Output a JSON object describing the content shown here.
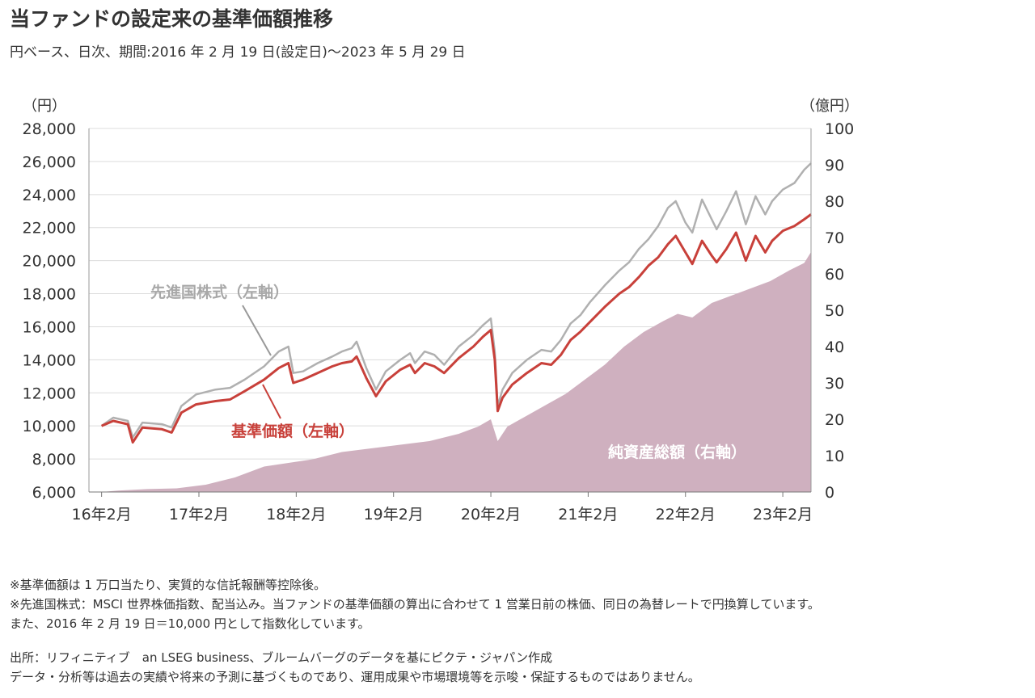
{
  "title": "当ファンドの設定来の基準価額推移",
  "subtitle": "円ベース、日次、期間:2016 年 2 月 19 日(設定日)～2023 年 5 月 29 日",
  "colors": {
    "nav": "#c8403a",
    "index": "#b0b0b0",
    "assets": "#cfb0bf",
    "grid": "#dcdcdc"
  },
  "chart_data": {
    "type": "line",
    "left_axis": {
      "unit": "（円）",
      "min": 6000,
      "max": 28000,
      "step": 2000,
      "ticks": [
        "6,000",
        "8,000",
        "10,000",
        "12,000",
        "14,000",
        "16,000",
        "18,000",
        "20,000",
        "22,000",
        "24,000",
        "26,000",
        "28,000"
      ]
    },
    "right_axis": {
      "unit": "（億円）",
      "min": 0,
      "max": 100,
      "step": 10,
      "ticks": [
        "0",
        "10",
        "20",
        "30",
        "40",
        "50",
        "60",
        "70",
        "80",
        "90",
        "100"
      ]
    },
    "x_axis": {
      "min": 2016.0,
      "max": 2023.42,
      "ticks": [
        {
          "label": "16年2月",
          "x": 2016.13
        },
        {
          "label": "17年2月",
          "x": 2017.13
        },
        {
          "label": "18年2月",
          "x": 2018.13
        },
        {
          "label": "19年2月",
          "x": 2019.13
        },
        {
          "label": "20年2月",
          "x": 2020.13
        },
        {
          "label": "21年2月",
          "x": 2021.13
        },
        {
          "label": "22年2月",
          "x": 2022.13
        },
        {
          "label": "23年2月",
          "x": 2023.13
        }
      ]
    },
    "series": [
      {
        "name": "先進国株式（左軸）",
        "axis": "left",
        "kind": "line",
        "points": [
          [
            2016.13,
            10000
          ],
          [
            2016.25,
            10500
          ],
          [
            2016.4,
            10300
          ],
          [
            2016.45,
            9300
          ],
          [
            2016.55,
            10200
          ],
          [
            2016.75,
            10100
          ],
          [
            2016.85,
            9900
          ],
          [
            2016.95,
            11200
          ],
          [
            2017.1,
            11900
          ],
          [
            2017.3,
            12200
          ],
          [
            2017.45,
            12300
          ],
          [
            2017.6,
            12800
          ],
          [
            2017.8,
            13600
          ],
          [
            2017.95,
            14500
          ],
          [
            2018.05,
            14800
          ],
          [
            2018.1,
            13200
          ],
          [
            2018.2,
            13300
          ],
          [
            2018.35,
            13800
          ],
          [
            2018.5,
            14200
          ],
          [
            2018.6,
            14500
          ],
          [
            2018.7,
            14700
          ],
          [
            2018.75,
            15100
          ],
          [
            2018.85,
            13500
          ],
          [
            2018.95,
            12200
          ],
          [
            2019.05,
            13300
          ],
          [
            2019.2,
            14000
          ],
          [
            2019.3,
            14400
          ],
          [
            2019.35,
            13800
          ],
          [
            2019.45,
            14500
          ],
          [
            2019.55,
            14300
          ],
          [
            2019.65,
            13700
          ],
          [
            2019.8,
            14800
          ],
          [
            2019.95,
            15500
          ],
          [
            2020.05,
            16100
          ],
          [
            2020.13,
            16500
          ],
          [
            2020.17,
            14500
          ],
          [
            2020.2,
            11200
          ],
          [
            2020.25,
            12200
          ],
          [
            2020.35,
            13200
          ],
          [
            2020.5,
            14000
          ],
          [
            2020.65,
            14600
          ],
          [
            2020.75,
            14500
          ],
          [
            2020.85,
            15200
          ],
          [
            2020.95,
            16200
          ],
          [
            2021.05,
            16700
          ],
          [
            2021.15,
            17500
          ],
          [
            2021.3,
            18500
          ],
          [
            2021.45,
            19400
          ],
          [
            2021.55,
            19900
          ],
          [
            2021.65,
            20700
          ],
          [
            2021.75,
            21300
          ],
          [
            2021.85,
            22100
          ],
          [
            2021.95,
            23200
          ],
          [
            2022.03,
            23600
          ],
          [
            2022.13,
            22300
          ],
          [
            2022.2,
            21700
          ],
          [
            2022.3,
            23700
          ],
          [
            2022.4,
            22500
          ],
          [
            2022.45,
            21900
          ],
          [
            2022.55,
            23000
          ],
          [
            2022.65,
            24200
          ],
          [
            2022.75,
            22200
          ],
          [
            2022.85,
            23900
          ],
          [
            2022.95,
            22800
          ],
          [
            2023.02,
            23600
          ],
          [
            2023.13,
            24300
          ],
          [
            2023.25,
            24700
          ],
          [
            2023.35,
            25500
          ],
          [
            2023.42,
            25900
          ]
        ]
      },
      {
        "name": "基準価額（左軸）",
        "axis": "left",
        "kind": "line",
        "points": [
          [
            2016.13,
            10000
          ],
          [
            2016.25,
            10300
          ],
          [
            2016.4,
            10100
          ],
          [
            2016.45,
            9000
          ],
          [
            2016.55,
            9900
          ],
          [
            2016.75,
            9800
          ],
          [
            2016.85,
            9600
          ],
          [
            2016.95,
            10800
          ],
          [
            2017.1,
            11300
          ],
          [
            2017.3,
            11500
          ],
          [
            2017.45,
            11600
          ],
          [
            2017.6,
            12100
          ],
          [
            2017.8,
            12800
          ],
          [
            2017.95,
            13500
          ],
          [
            2018.05,
            13800
          ],
          [
            2018.1,
            12600
          ],
          [
            2018.2,
            12800
          ],
          [
            2018.35,
            13200
          ],
          [
            2018.5,
            13600
          ],
          [
            2018.6,
            13800
          ],
          [
            2018.7,
            13900
          ],
          [
            2018.75,
            14200
          ],
          [
            2018.85,
            12900
          ],
          [
            2018.95,
            11800
          ],
          [
            2019.05,
            12700
          ],
          [
            2019.2,
            13400
          ],
          [
            2019.3,
            13700
          ],
          [
            2019.35,
            13200
          ],
          [
            2019.45,
            13800
          ],
          [
            2019.55,
            13600
          ],
          [
            2019.65,
            13200
          ],
          [
            2019.8,
            14100
          ],
          [
            2019.95,
            14800
          ],
          [
            2020.05,
            15400
          ],
          [
            2020.13,
            15800
          ],
          [
            2020.17,
            14000
          ],
          [
            2020.2,
            10900
          ],
          [
            2020.25,
            11700
          ],
          [
            2020.35,
            12500
          ],
          [
            2020.5,
            13200
          ],
          [
            2020.65,
            13800
          ],
          [
            2020.75,
            13700
          ],
          [
            2020.85,
            14300
          ],
          [
            2020.95,
            15200
          ],
          [
            2021.05,
            15700
          ],
          [
            2021.15,
            16300
          ],
          [
            2021.3,
            17200
          ],
          [
            2021.45,
            18000
          ],
          [
            2021.55,
            18400
          ],
          [
            2021.65,
            19000
          ],
          [
            2021.75,
            19700
          ],
          [
            2021.85,
            20200
          ],
          [
            2021.95,
            21000
          ],
          [
            2022.03,
            21500
          ],
          [
            2022.13,
            20500
          ],
          [
            2022.2,
            19800
          ],
          [
            2022.3,
            21200
          ],
          [
            2022.4,
            20300
          ],
          [
            2022.45,
            19900
          ],
          [
            2022.55,
            20700
          ],
          [
            2022.65,
            21700
          ],
          [
            2022.75,
            20000
          ],
          [
            2022.85,
            21500
          ],
          [
            2022.95,
            20500
          ],
          [
            2023.02,
            21200
          ],
          [
            2023.13,
            21800
          ],
          [
            2023.25,
            22100
          ],
          [
            2023.35,
            22500
          ],
          [
            2023.42,
            22800
          ]
        ]
      },
      {
        "name": "純資産総額（右軸）",
        "axis": "right",
        "kind": "area",
        "points": [
          [
            2016.13,
            0
          ],
          [
            2016.3,
            0.4
          ],
          [
            2016.6,
            0.8
          ],
          [
            2016.9,
            1
          ],
          [
            2017.2,
            2
          ],
          [
            2017.5,
            4
          ],
          [
            2017.8,
            7
          ],
          [
            2018.05,
            8
          ],
          [
            2018.3,
            9
          ],
          [
            2018.6,
            11
          ],
          [
            2018.9,
            12
          ],
          [
            2019.2,
            13
          ],
          [
            2019.5,
            14
          ],
          [
            2019.8,
            16
          ],
          [
            2020.0,
            18
          ],
          [
            2020.13,
            20
          ],
          [
            2020.2,
            14
          ],
          [
            2020.3,
            18
          ],
          [
            2020.5,
            21
          ],
          [
            2020.7,
            24
          ],
          [
            2020.9,
            27
          ],
          [
            2021.1,
            31
          ],
          [
            2021.3,
            35
          ],
          [
            2021.5,
            40
          ],
          [
            2021.7,
            44
          ],
          [
            2021.9,
            47
          ],
          [
            2022.05,
            49
          ],
          [
            2022.2,
            48
          ],
          [
            2022.4,
            52
          ],
          [
            2022.6,
            54
          ],
          [
            2022.8,
            56
          ],
          [
            2023.0,
            58
          ],
          [
            2023.2,
            61
          ],
          [
            2023.35,
            63
          ],
          [
            2023.42,
            66
          ]
        ]
      }
    ],
    "annotations": [
      "先進国株式（左軸）",
      "基準価額（左軸）",
      "純資産総額（右軸）"
    ]
  },
  "notes": [
    "※基準価額は 1 万口当たり、実質的な信託報酬等控除後。",
    "※先進国株式：MSCI 世界株価指数、配当込み。当ファンドの基準価額の算出に合わせて 1 営業日前の株価、同日の為替レートで円換算しています。",
    "また、2016 年 2 月 19 日＝10,000 円として指数化しています。"
  ],
  "source": [
    "出所：リフィニティブ　an LSEG business、ブルームバーグのデータを基にピクテ・ジャパン作成",
    "データ・分析等は過去の実績や将来の予測に基づくものであり、運用成果や市場環境等を示唆・保証するものではありません。"
  ]
}
